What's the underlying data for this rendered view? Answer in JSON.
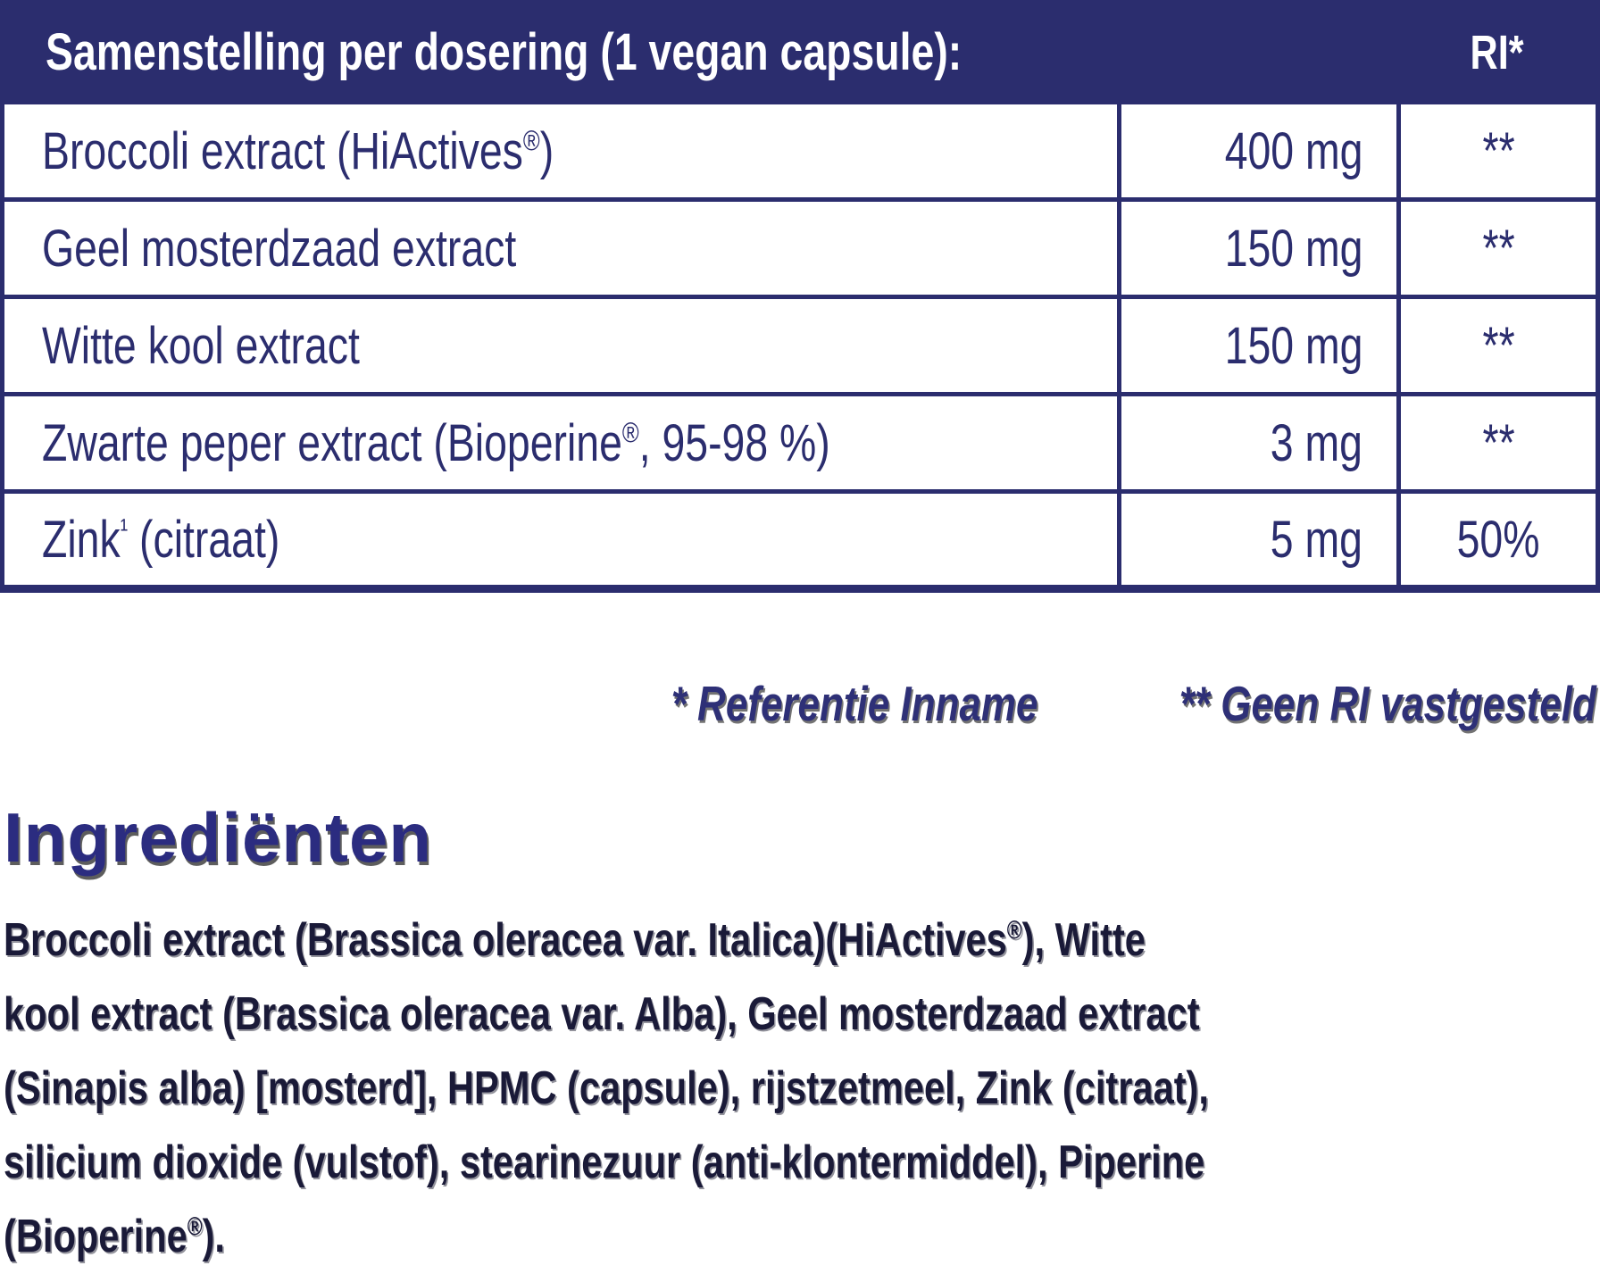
{
  "colors": {
    "navy": "#2b2d6e",
    "heading_blue": "#2b2c80",
    "paragraph_dark": "#1a1a38",
    "table_bg": "#ffffff",
    "header_text": "#ffffff"
  },
  "table": {
    "title": "Samenstelling per dosering (1 vegan capsule):",
    "ri_header": "RI*",
    "rows": [
      {
        "name": "Broccoli extract (HiActives®)",
        "amount": "400 mg",
        "ri": "**"
      },
      {
        "name": "Geel mosterdzaad extract",
        "amount": "150 mg",
        "ri": "**"
      },
      {
        "name": "Witte kool extract",
        "amount": "150 mg",
        "ri": "**"
      },
      {
        "name": "Zwarte peper extract (Bioperine®, 95-98 %)",
        "amount": "3 mg",
        "ri": "**"
      },
      {
        "name": "Zink¹ (citraat)",
        "amount": "5 mg",
        "ri": "50%"
      }
    ]
  },
  "footnote": {
    "reference": "* Referentie Inname",
    "no_ri": "** Geen RI vastgesteld"
  },
  "ingredients": {
    "heading": "Ingrediënten",
    "lines": [
      "Broccoli extract (Brassica oleracea var. Italica)(HiActives®), Witte",
      "kool extract (Brassica oleracea var. Alba), Geel mosterdzaad extract",
      "(Sinapis alba) [mosterd], HPMC (capsule), rijstzetmeel, Zink (citraat),",
      "silicium dioxide (vulstof), stearinezuur (anti-klontermiddel), Piperine",
      "(Bioperine®)."
    ]
  }
}
